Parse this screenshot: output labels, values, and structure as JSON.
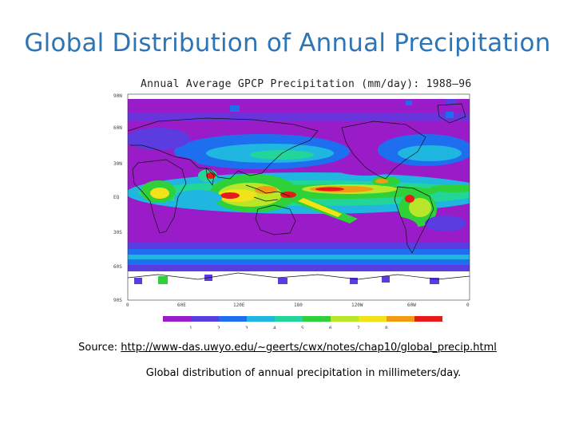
{
  "slide": {
    "title": "Global Distribution of Annual Precipitation"
  },
  "map": {
    "title": "Annual Average GPCP Precipitation (mm/day): 1988–96",
    "lat_labels": [
      "90N",
      "60N",
      "30N",
      "EQ",
      "30S",
      "60S",
      "90S"
    ],
    "lon_labels": [
      "0",
      "60E",
      "120E",
      "180",
      "120W",
      "60W",
      "0"
    ],
    "colorbar": {
      "ticks": [
        "1",
        "2",
        "3",
        "4",
        "5",
        "6",
        "7",
        "8"
      ],
      "colors": [
        "#9a1bc8",
        "#5a3ce0",
        "#1e6ff0",
        "#1fb6e0",
        "#22d69a",
        "#2fd13a",
        "#b8e629",
        "#f2e21a",
        "#f29a14",
        "#e61a1a"
      ]
    },
    "palette": {
      "driest": "#9a1bc8",
      "dry": "#5a3ce0",
      "moderate": "#1e6ff0",
      "humid": "#1fb6e0",
      "wet": "#2fd13a",
      "very_wet": "#f2e21a",
      "wettest": "#e61a1a",
      "no_data": "#ffffff",
      "coastline": "#111111"
    }
  },
  "source": {
    "prefix": "Source: ",
    "url": "http://www-das.uwyo.edu/~geerts/cwx/notes/chap10/global_precip.html"
  },
  "caption": "Global distribution of annual precipitation in millimeters/day."
}
